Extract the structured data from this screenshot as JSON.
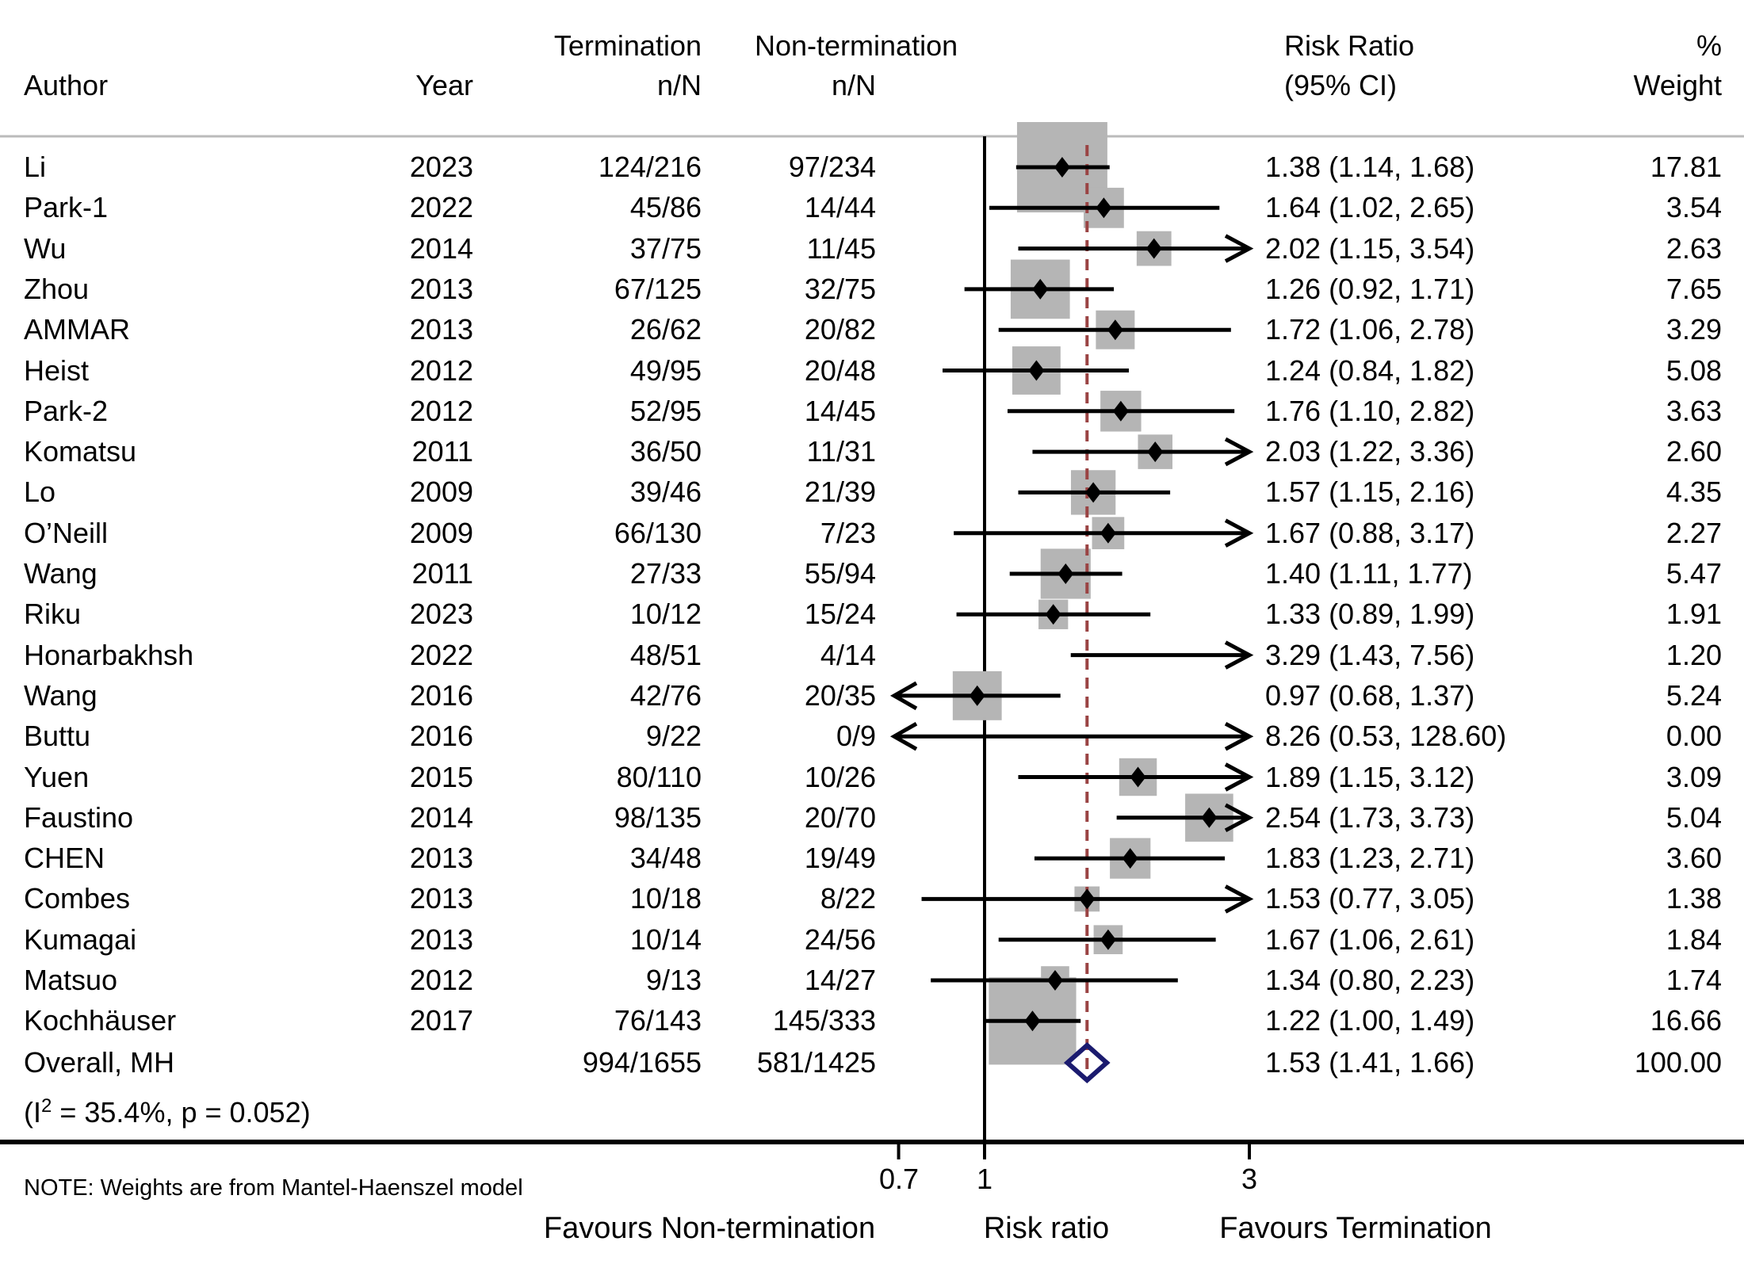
{
  "header": {
    "author": "Author",
    "year": "Year",
    "termination_line1": "Termination",
    "termination_line2": "n/N",
    "nontermination_line1": "Non-termination",
    "nontermination_line2": "n/N",
    "rr_line1": "Risk Ratio",
    "rr_line2": "(95% CI)",
    "weight_line1": "%",
    "weight_line2": "Weight"
  },
  "note": "NOTE: Weights are from Mantel-Haenszel model",
  "axis_labels": {
    "tick_0": "0.7",
    "tick_1": "1",
    "tick_2": "3",
    "xlabel": "Risk ratio",
    "left_label": "Favours Non-termination",
    "right_label": "Favours Termination"
  },
  "heterogeneity": {
    "pre": "(I",
    "sup": "2",
    "post": " = 35.4%, p = 0.052)"
  },
  "colors": {
    "square": "#b5b5b5",
    "dash_line": "#9a4343",
    "diamond": "#1b1b6f",
    "header_rule": "#bbbbbb",
    "axis_line": "#000000",
    "text": "#000000"
  },
  "chart_data": {
    "type": "forest",
    "x_scale": "log",
    "x_ticks": [
      0.7,
      1,
      3
    ],
    "xlabel": "Risk ratio",
    "null_line": 1,
    "overall_line": 1.53,
    "model": "Mantel-Haenszel",
    "heterogeneity": {
      "I2_percent": 35.4,
      "p": 0.052
    },
    "legend_left": "Favours Non-termination",
    "legend_right": "Favours Termination",
    "studies": [
      {
        "author": "Li",
        "year": "2023",
        "termination": "124/216",
        "nontermination": "97/234",
        "rr": 1.38,
        "ci_low": 1.14,
        "ci_high": 1.68,
        "ci_text": "1.38 (1.14, 1.68)",
        "weight": 17.81,
        "weight_text": "17.81"
      },
      {
        "author": "Park-1",
        "year": "2022",
        "termination": "45/86",
        "nontermination": "14/44",
        "rr": 1.64,
        "ci_low": 1.02,
        "ci_high": 2.65,
        "ci_text": "1.64 (1.02, 2.65)",
        "weight": 3.54,
        "weight_text": "3.54"
      },
      {
        "author": "Wu",
        "year": "2014",
        "termination": "37/75",
        "nontermination": "11/45",
        "rr": 2.02,
        "ci_low": 1.15,
        "ci_high": 3.54,
        "ci_text": "2.02 (1.15, 3.54)",
        "weight": 2.63,
        "weight_text": "2.63"
      },
      {
        "author": "Zhou",
        "year": "2013",
        "termination": "67/125",
        "nontermination": "32/75",
        "rr": 1.26,
        "ci_low": 0.92,
        "ci_high": 1.71,
        "ci_text": "1.26 (0.92, 1.71)",
        "weight": 7.65,
        "weight_text": "7.65"
      },
      {
        "author": "AMMAR",
        "year": "2013",
        "termination": "26/62",
        "nontermination": "20/82",
        "rr": 1.72,
        "ci_low": 1.06,
        "ci_high": 2.78,
        "ci_text": "1.72 (1.06, 2.78)",
        "weight": 3.29,
        "weight_text": "3.29"
      },
      {
        "author": "Heist",
        "year": "2012",
        "termination": "49/95",
        "nontermination": "20/48",
        "rr": 1.24,
        "ci_low": 0.84,
        "ci_high": 1.82,
        "ci_text": "1.24 (0.84, 1.82)",
        "weight": 5.08,
        "weight_text": "5.08"
      },
      {
        "author": "Park-2",
        "year": "2012",
        "termination": "52/95",
        "nontermination": "14/45",
        "rr": 1.76,
        "ci_low": 1.1,
        "ci_high": 2.82,
        "ci_text": "1.76 (1.10, 2.82)",
        "weight": 3.63,
        "weight_text": "3.63"
      },
      {
        "author": "Komatsu",
        "year": "2011",
        "termination": "36/50",
        "nontermination": "11/31",
        "rr": 2.03,
        "ci_low": 1.22,
        "ci_high": 3.36,
        "ci_text": "2.03 (1.22, 3.36)",
        "weight": 2.6,
        "weight_text": "2.60"
      },
      {
        "author": "Lo",
        "year": "2009",
        "termination": "39/46",
        "nontermination": "21/39",
        "rr": 1.57,
        "ci_low": 1.15,
        "ci_high": 2.16,
        "ci_text": "1.57 (1.15, 2.16)",
        "weight": 4.35,
        "weight_text": "4.35"
      },
      {
        "author": "O’Neill",
        "year": "2009",
        "termination": "66/130",
        "nontermination": "7/23",
        "rr": 1.67,
        "ci_low": 0.88,
        "ci_high": 3.17,
        "ci_text": "1.67 (0.88, 3.17)",
        "weight": 2.27,
        "weight_text": "2.27"
      },
      {
        "author": "Wang",
        "year": "2011",
        "termination": "27/33",
        "nontermination": "55/94",
        "rr": 1.4,
        "ci_low": 1.11,
        "ci_high": 1.77,
        "ci_text": "1.40 (1.11, 1.77)",
        "weight": 5.47,
        "weight_text": "5.47"
      },
      {
        "author": "Riku",
        "year": "2023",
        "termination": "10/12",
        "nontermination": "15/24",
        "rr": 1.33,
        "ci_low": 0.89,
        "ci_high": 1.99,
        "ci_text": "1.33 (0.89, 1.99)",
        "weight": 1.91,
        "weight_text": "1.91"
      },
      {
        "author": "Honarbakhsh",
        "year": "2022",
        "termination": "48/51",
        "nontermination": "4/14",
        "rr": 3.29,
        "ci_low": 1.43,
        "ci_high": 7.56,
        "ci_text": "3.29 (1.43, 7.56)",
        "weight": 1.2,
        "weight_text": "1.20"
      },
      {
        "author": "Wang",
        "year": "2016",
        "termination": "42/76",
        "nontermination": "20/35",
        "rr": 0.97,
        "ci_low": 0.68,
        "ci_high": 1.37,
        "ci_text": "0.97 (0.68, 1.37)",
        "weight": 5.24,
        "weight_text": "5.24"
      },
      {
        "author": "Buttu",
        "year": "2016",
        "termination": "9/22",
        "nontermination": "0/9",
        "rr": 8.26,
        "ci_low": 0.53,
        "ci_high": 128.6,
        "ci_text": "8.26 (0.53, 128.60)",
        "weight": 0.0,
        "weight_text": "0.00"
      },
      {
        "author": "Yuen",
        "year": "2015",
        "termination": "80/110",
        "nontermination": "10/26",
        "rr": 1.89,
        "ci_low": 1.15,
        "ci_high": 3.12,
        "ci_text": "1.89 (1.15, 3.12)",
        "weight": 3.09,
        "weight_text": "3.09"
      },
      {
        "author": "Faustino",
        "year": "2014",
        "termination": "98/135",
        "nontermination": "20/70",
        "rr": 2.54,
        "ci_low": 1.73,
        "ci_high": 3.73,
        "ci_text": "2.54 (1.73, 3.73)",
        "weight": 5.04,
        "weight_text": "5.04"
      },
      {
        "author": "CHEN",
        "year": "2013",
        "termination": "34/48",
        "nontermination": "19/49",
        "rr": 1.83,
        "ci_low": 1.23,
        "ci_high": 2.71,
        "ci_text": "1.83 (1.23, 2.71)",
        "weight": 3.6,
        "weight_text": "3.60"
      },
      {
        "author": "Combes",
        "year": "2013",
        "termination": "10/18",
        "nontermination": "8/22",
        "rr": 1.53,
        "ci_low": 0.77,
        "ci_high": 3.05,
        "ci_text": "1.53 (0.77, 3.05)",
        "weight": 1.38,
        "weight_text": "1.38"
      },
      {
        "author": "Kumagai",
        "year": "2013",
        "termination": "10/14",
        "nontermination": "24/56",
        "rr": 1.67,
        "ci_low": 1.06,
        "ci_high": 2.61,
        "ci_text": "1.67 (1.06, 2.61)",
        "weight": 1.84,
        "weight_text": "1.84"
      },
      {
        "author": "Matsuo",
        "year": "2012",
        "termination": "9/13",
        "nontermination": "14/27",
        "rr": 1.34,
        "ci_low": 0.8,
        "ci_high": 2.23,
        "ci_text": "1.34 (0.80, 2.23)",
        "weight": 1.74,
        "weight_text": "1.74"
      },
      {
        "author": "Kochhäuser",
        "year": "2017",
        "termination": "76/143",
        "nontermination": "145/333",
        "rr": 1.22,
        "ci_low": 1.0,
        "ci_high": 1.49,
        "ci_text": "1.22 (1.00, 1.49)",
        "weight": 16.66,
        "weight_text": "16.66"
      }
    ],
    "overall": {
      "label": "Overall, MH",
      "termination": "994/1655",
      "nontermination": "581/1425",
      "rr": 1.53,
      "ci_low": 1.41,
      "ci_high": 1.66,
      "ci_text": "1.53 (1.41, 1.66)",
      "weight": 100.0,
      "weight_text": "100.00"
    }
  }
}
